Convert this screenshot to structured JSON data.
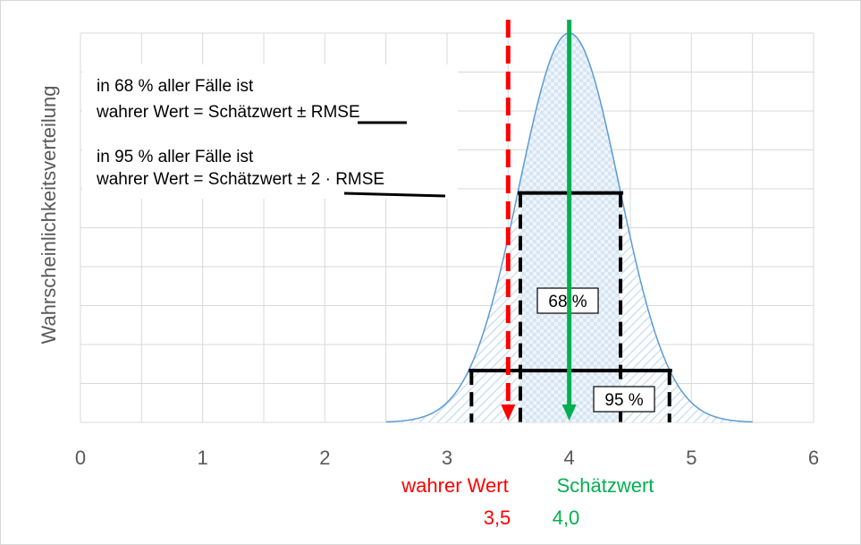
{
  "chart_data": {
    "type": "area",
    "title": "",
    "ylabel": "Wahrscheinlichkeitsverteilung",
    "xlabel": "",
    "xlim": [
      0,
      6
    ],
    "x_ticks": [
      "0",
      "1",
      "2",
      "3",
      "4",
      "5",
      "6"
    ],
    "grid": true,
    "distribution": {
      "name": "normal",
      "mean": 4.0,
      "sd": 0.41
    },
    "intervals": [
      {
        "label": "68 %",
        "lower": 3.6,
        "upper": 4.42
      },
      {
        "label": "95 %",
        "lower": 3.2,
        "upper": 4.82
      }
    ],
    "markers": [
      {
        "label": "wahrer Wert",
        "value_label": "3,5",
        "x": 3.5,
        "color": "#ff0000",
        "style": "dashed"
      },
      {
        "label": "Schätzwert",
        "value_label": "4,0",
        "x": 4.0,
        "color": "#00b050",
        "style": "solid"
      }
    ]
  },
  "annotation": {
    "line1": "in 68 % aller Fälle ist",
    "line2_prefix": "wahrer Wert = Schätzwert ± ",
    "line2_rmse": "RMSE",
    "line3": "in 95 % aller Fälle ist",
    "line4_prefix": "wahrer Wert = Schätzwert ",
    "line4_rmse": "± 2 · RMSE"
  },
  "colors": {
    "curve": "#5b9bd5",
    "fill": "#dce8f4",
    "grid": "#d9d9d9",
    "axis_text": "#595959"
  }
}
